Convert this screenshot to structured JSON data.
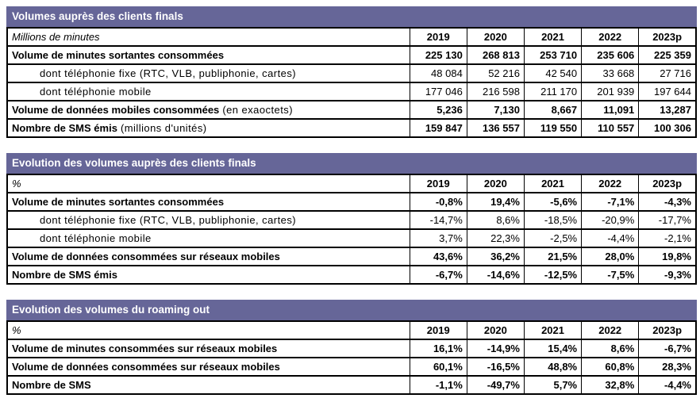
{
  "colors": {
    "header_bg": "#666698",
    "header_text": "#ffffff",
    "border": "#000000",
    "text": "#000000",
    "page_bg": "#ffffff"
  },
  "columns": [
    "2019",
    "2020",
    "2021",
    "2022",
    "2023p"
  ],
  "tables": [
    {
      "title": "Volumes auprès des clients finals",
      "unit": "Millions de minutes",
      "rows": [
        {
          "label": "Volume de minutes sortantes consommées",
          "style": "main",
          "values": [
            "225 130",
            "268 813",
            "253 710",
            "235 606",
            "225 359"
          ]
        },
        {
          "label": "dont téléphonie fixe (RTC, VLB, publiphonie, cartes)",
          "style": "sub",
          "values": [
            "48 084",
            "52 216",
            "42 540",
            "33 668",
            "27 716"
          ]
        },
        {
          "label": "dont téléphonie mobile",
          "style": "sub",
          "values": [
            "177 046",
            "216 598",
            "211 170",
            "201 939",
            "197 644"
          ]
        },
        {
          "label": "Volume de données mobiles consommées",
          "label_suffix": " (en exaoctets)",
          "style": "main",
          "values": [
            "5,236",
            "7,130",
            "8,667",
            "11,091",
            "13,287"
          ]
        },
        {
          "label": "Nombre de SMS émis",
          "label_suffix": " (millions d'unités)",
          "style": "main",
          "values": [
            "159 847",
            "136 557",
            "119 550",
            "110 557",
            "100 306"
          ]
        }
      ]
    },
    {
      "title": "Evolution des volumes auprès des clients finals",
      "unit": "%",
      "rows": [
        {
          "label": "Volume de minutes sortantes consommées",
          "style": "main",
          "values": [
            "-0,8%",
            "19,4%",
            "-5,6%",
            "-7,1%",
            "-4,3%"
          ]
        },
        {
          "label": "dont téléphonie fixe (RTC, VLB, publiphonie, cartes)",
          "style": "sub",
          "values": [
            "-14,7%",
            "8,6%",
            "-18,5%",
            "-20,9%",
            "-17,7%"
          ]
        },
        {
          "label": "dont téléphonie mobile",
          "style": "sub",
          "values": [
            "3,7%",
            "22,3%",
            "-2,5%",
            "-4,4%",
            "-2,1%"
          ]
        },
        {
          "label": "Volume de données consommées sur réseaux mobiles",
          "style": "main",
          "values": [
            "43,6%",
            "36,2%",
            "21,5%",
            "28,0%",
            "19,8%"
          ]
        },
        {
          "label": "Nombre de SMS émis",
          "style": "main",
          "values": [
            "-6,7%",
            "-14,6%",
            "-12,5%",
            "-7,5%",
            "-9,3%"
          ]
        }
      ]
    },
    {
      "title": "Evolution des volumes du roaming out",
      "unit": "%",
      "rows": [
        {
          "label": "Volume de minutes consommées sur réseaux mobiles",
          "style": "main",
          "values": [
            "16,1%",
            "-14,9%",
            "15,4%",
            "8,6%",
            "-6,7%"
          ]
        },
        {
          "label": "Volume de données consommées sur réseaux mobiles",
          "style": "main",
          "values": [
            "60,1%",
            "-16,5%",
            "48,8%",
            "60,8%",
            "28,3%"
          ]
        },
        {
          "label": "Nombre de SMS",
          "style": "main",
          "values": [
            "-1,1%",
            "-49,7%",
            "5,7%",
            "32,8%",
            "-4,4%"
          ]
        }
      ]
    }
  ]
}
